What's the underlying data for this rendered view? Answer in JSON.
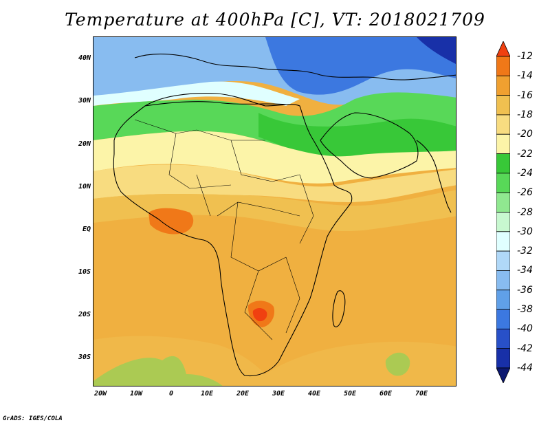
{
  "title": "Temperature at 400hPa [C], VT: 2018021709",
  "credit": "GrADS: IGES/COLA",
  "map": {
    "region": "Africa and surroundings",
    "lon_range": [
      -22,
      80
    ],
    "lat_range": [
      -37,
      45
    ],
    "y_ticks": [
      "40N",
      "30N",
      "20N",
      "10N",
      "EQ",
      "10S",
      "20S",
      "30S"
    ],
    "x_ticks": [
      "20W",
      "10W",
      "0",
      "10E",
      "20E",
      "30E",
      "40E",
      "50E",
      "60E",
      "70E"
    ]
  },
  "colorbar": {
    "labels": [
      "-12",
      "-14",
      "-16",
      "-18",
      "-20",
      "-22",
      "-24",
      "-26",
      "-28",
      "-30",
      "-32",
      "-34",
      "-36",
      "-38",
      "-40",
      "-42",
      "-44"
    ],
    "colors": [
      "#f04010",
      "#f07818",
      "#f0a030",
      "#f0c050",
      "#f8dc80",
      "#fcf4a8",
      "#38c838",
      "#58d858",
      "#90e890",
      "#c8f8d0",
      "#e0ffff",
      "#b0d8f8",
      "#88bcf0",
      "#60a0e8",
      "#3c78e0",
      "#2850c8",
      "#1830a8",
      "#0c1870"
    ]
  }
}
